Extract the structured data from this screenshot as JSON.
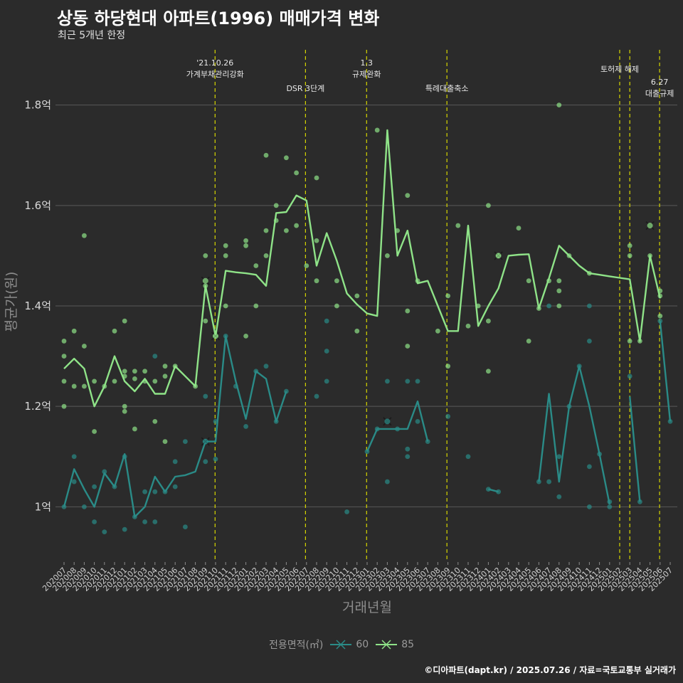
{
  "title": "상동 하당현대 아파트(1996) 매매가격 변화",
  "subtitle": "최근 5개년 한정",
  "caption": "©디아파트(dapt.kr) / 2025.07.26 / 자료=국토교통부 실거래가",
  "colors": {
    "background": "#2b2b2b",
    "grid": "#595959",
    "vline": "#d6d600",
    "s60": "#2a8b87",
    "s85": "#8fe388"
  },
  "chart_data": {
    "type": "line",
    "xlabel": "거래년월",
    "ylabel": "평균가(원)",
    "ylim": [
      0.89,
      1.91
    ],
    "yticks": [
      1.0,
      1.2,
      1.4,
      1.6,
      1.8
    ],
    "ytick_labels": [
      "1억",
      "1.2억",
      "1.4억",
      "1.6억",
      "1.8억"
    ],
    "grid": true,
    "legend": {
      "title": "전용면적(㎡)",
      "position": "bottom"
    },
    "categories": [
      "202007",
      "202008",
      "202009",
      "202010",
      "202011",
      "202012",
      "202101",
      "202102",
      "202103",
      "202104",
      "202105",
      "202106",
      "202107",
      "202108",
      "202109",
      "202110",
      "202111",
      "202112",
      "202201",
      "202202",
      "202203",
      "202204",
      "202205",
      "202206",
      "202207",
      "202208",
      "202209",
      "202210",
      "202211",
      "202212",
      "202301",
      "202302",
      "202303",
      "202304",
      "202305",
      "202306",
      "202307",
      "202308",
      "202309",
      "202310",
      "202311",
      "202312",
      "202401",
      "202402",
      "202403",
      "202404",
      "202405",
      "202406",
      "202407",
      "202408",
      "202409",
      "202410",
      "202411",
      "202412",
      "202501",
      "202502",
      "202503",
      "202504",
      "202505",
      "202506",
      "202507"
    ],
    "series": [
      {
        "name": "60",
        "values": [
          1.0,
          1.075,
          1.035,
          1.0,
          1.067,
          1.04,
          1.105,
          0.98,
          1.0,
          1.06,
          1.03,
          1.06,
          1.063,
          1.07,
          1.13,
          1.13,
          1.34,
          1.25,
          1.175,
          1.27,
          1.255,
          1.17,
          1.23,
          null,
          null,
          1.22,
          null,
          null,
          null,
          null,
          1.11,
          1.155,
          1.155,
          1.155,
          1.155,
          1.21,
          1.13,
          null,
          1.18,
          null,
          1.1,
          null,
          1.035,
          1.03,
          null,
          null,
          null,
          1.05,
          1.225,
          1.05,
          1.2,
          1.28,
          1.2,
          1.105,
          1.005,
          null,
          1.22,
          1.01,
          null,
          1.37,
          1.17
        ],
        "points": [
          [
            0,
            1.0
          ],
          [
            1,
            1.05
          ],
          [
            1,
            1.1
          ],
          [
            2,
            1.0
          ],
          [
            3,
            0.97
          ],
          [
            3,
            1.04
          ],
          [
            4,
            0.95
          ],
          [
            4,
            1.07
          ],
          [
            5,
            1.04
          ],
          [
            6,
            0.955
          ],
          [
            6,
            1.1
          ],
          [
            7,
            0.98
          ],
          [
            8,
            0.97
          ],
          [
            8,
            1.03
          ],
          [
            9,
            0.97
          ],
          [
            9,
            1.03
          ],
          [
            9,
            1.3
          ],
          [
            10,
            1.03
          ],
          [
            11,
            1.04
          ],
          [
            11,
            1.09
          ],
          [
            12,
            0.96
          ],
          [
            12,
            1.13
          ],
          [
            14,
            1.13
          ],
          [
            14,
            1.09
          ],
          [
            14,
            1.22
          ],
          [
            15,
            1.095
          ],
          [
            15,
            1.17
          ],
          [
            16,
            1.34
          ],
          [
            17,
            1.24
          ],
          [
            18,
            1.16
          ],
          [
            19,
            1.27
          ],
          [
            20,
            1.28
          ],
          [
            21,
            1.17
          ],
          [
            22,
            1.23
          ],
          [
            25,
            1.22
          ],
          [
            26,
            1.25
          ],
          [
            26,
            1.31
          ],
          [
            26,
            1.37
          ],
          [
            28,
            0.99
          ],
          [
            30,
            1.11
          ],
          [
            31,
            1.155
          ],
          [
            32,
            1.05
          ],
          [
            32,
            1.25
          ],
          [
            33,
            1.155
          ],
          [
            34,
            1.1
          ],
          [
            34,
            1.115
          ],
          [
            34,
            1.25
          ],
          [
            35,
            1.17
          ],
          [
            35,
            1.25
          ],
          [
            36,
            1.13
          ],
          [
            38,
            1.18
          ],
          [
            40,
            1.1
          ],
          [
            42,
            1.035
          ],
          [
            43,
            1.03
          ],
          [
            47,
            1.05
          ],
          [
            48,
            1.05
          ],
          [
            48,
            1.4
          ],
          [
            49,
            1.02
          ],
          [
            49,
            1.1
          ],
          [
            50,
            1.2
          ],
          [
            51,
            1.28
          ],
          [
            52,
            1.0
          ],
          [
            52,
            1.08
          ],
          [
            52,
            1.33
          ],
          [
            52,
            1.4
          ],
          [
            53,
            1.105
          ],
          [
            54,
            1.0
          ],
          [
            54,
            1.01
          ],
          [
            56,
            1.26
          ],
          [
            57,
            1.01
          ],
          [
            59,
            1.37
          ],
          [
            60,
            1.17
          ]
        ],
        "crosses": [
          [
            14,
            1.13
          ],
          [
            32,
            1.17
          ]
        ]
      },
      {
        "name": "85",
        "values": [
          1.275,
          1.295,
          1.275,
          1.2,
          1.24,
          1.3,
          1.25,
          1.23,
          1.255,
          1.225,
          1.225,
          1.28,
          1.26,
          1.24,
          1.44,
          1.34,
          1.47,
          1.467,
          1.465,
          1.462,
          1.44,
          1.585,
          1.587,
          1.62,
          1.61,
          1.48,
          1.545,
          1.49,
          1.425,
          1.403,
          1.385,
          1.38,
          1.75,
          1.5,
          1.55,
          1.445,
          1.45,
          1.4,
          1.35,
          1.35,
          1.56,
          1.36,
          1.4,
          1.435,
          1.5,
          1.502,
          1.503,
          1.395,
          1.455,
          1.52,
          1.5,
          1.48,
          1.465,
          1.462,
          1.459,
          1.456,
          1.453,
          1.33,
          1.5,
          1.415,
          null
        ],
        "points": [
          [
            0,
            1.33
          ],
          [
            0,
            1.3
          ],
          [
            0,
            1.25
          ],
          [
            0,
            1.2
          ],
          [
            1,
            1.35
          ],
          [
            1,
            1.24
          ],
          [
            2,
            1.54
          ],
          [
            2,
            1.32
          ],
          [
            2,
            1.24
          ],
          [
            3,
            1.25
          ],
          [
            3,
            1.15
          ],
          [
            4,
            1.24
          ],
          [
            5,
            1.35
          ],
          [
            5,
            1.25
          ],
          [
            6,
            1.37
          ],
          [
            6,
            1.27
          ],
          [
            6,
            1.26
          ],
          [
            6,
            1.2
          ],
          [
            6,
            1.19
          ],
          [
            7,
            1.27
          ],
          [
            7,
            1.255
          ],
          [
            7,
            1.155
          ],
          [
            8,
            1.27
          ],
          [
            8,
            1.25
          ],
          [
            9,
            1.25
          ],
          [
            9,
            1.17
          ],
          [
            10,
            1.28
          ],
          [
            10,
            1.26
          ],
          [
            10,
            1.13
          ],
          [
            11,
            1.28
          ],
          [
            13,
            1.24
          ],
          [
            14,
            1.5
          ],
          [
            14,
            1.44
          ],
          [
            14,
            1.37
          ],
          [
            15,
            1.34
          ],
          [
            16,
            1.52
          ],
          [
            16,
            1.5
          ],
          [
            16,
            1.4
          ],
          [
            18,
            1.53
          ],
          [
            18,
            1.52
          ],
          [
            18,
            1.34
          ],
          [
            19,
            1.48
          ],
          [
            19,
            1.4
          ],
          [
            20,
            1.7
          ],
          [
            20,
            1.55
          ],
          [
            20,
            1.5
          ],
          [
            21,
            1.6
          ],
          [
            21,
            1.57
          ],
          [
            22,
            1.695
          ],
          [
            22,
            1.55
          ],
          [
            23,
            1.665
          ],
          [
            23,
            1.56
          ],
          [
            24,
            1.48
          ],
          [
            25,
            1.655
          ],
          [
            25,
            1.53
          ],
          [
            25,
            1.45
          ],
          [
            27,
            1.45
          ],
          [
            27,
            1.4
          ],
          [
            29,
            1.42
          ],
          [
            29,
            1.35
          ],
          [
            31,
            1.75
          ],
          [
            32,
            1.5
          ],
          [
            33,
            1.55
          ],
          [
            34,
            1.62
          ],
          [
            34,
            1.39
          ],
          [
            34,
            1.32
          ],
          [
            35,
            1.45
          ],
          [
            37,
            1.35
          ],
          [
            38,
            1.28
          ],
          [
            38,
            1.42
          ],
          [
            39,
            1.56
          ],
          [
            40,
            1.36
          ],
          [
            41,
            1.4
          ],
          [
            42,
            1.6
          ],
          [
            42,
            1.37
          ],
          [
            42,
            1.27
          ],
          [
            43,
            1.5
          ],
          [
            45,
            1.555
          ],
          [
            46,
            1.45
          ],
          [
            46,
            1.33
          ],
          [
            47,
            1.395
          ],
          [
            48,
            1.45
          ],
          [
            49,
            1.8
          ],
          [
            49,
            1.45
          ],
          [
            49,
            1.43
          ],
          [
            49,
            1.4
          ],
          [
            50,
            1.5
          ],
          [
            52,
            1.465
          ],
          [
            56,
            1.52
          ],
          [
            56,
            1.5
          ],
          [
            56,
            1.33
          ],
          [
            57,
            1.33
          ],
          [
            58,
            1.5
          ],
          [
            59,
            1.43
          ],
          [
            59,
            1.42
          ],
          [
            59,
            1.38
          ]
        ],
        "crosses": [
          [
            14,
            1.45
          ],
          [
            15,
            1.34
          ],
          [
            43,
            1.5
          ],
          [
            58,
            1.56
          ]
        ]
      }
    ],
    "annotations": [
      {
        "x": 14.95,
        "lines": [
          "'21.10.26",
          "가계부채관리강화"
        ],
        "level": 0
      },
      {
        "x": 23.9,
        "lines": [
          "DSR 3단계"
        ],
        "level": 2
      },
      {
        "x": 29.95,
        "lines": [
          "1.3",
          "규제완화"
        ],
        "level": 0
      },
      {
        "x": 37.9,
        "lines": [
          "특례대출축소"
        ],
        "level": 2
      },
      {
        "x": 55.0,
        "lines": [
          "토허제 해제"
        ],
        "level": 1
      },
      {
        "x": 56.0,
        "lines": [],
        "level": 1
      },
      {
        "x": 58.95,
        "lines": [
          "6.27",
          "대출규제"
        ],
        "level": 3
      }
    ]
  }
}
